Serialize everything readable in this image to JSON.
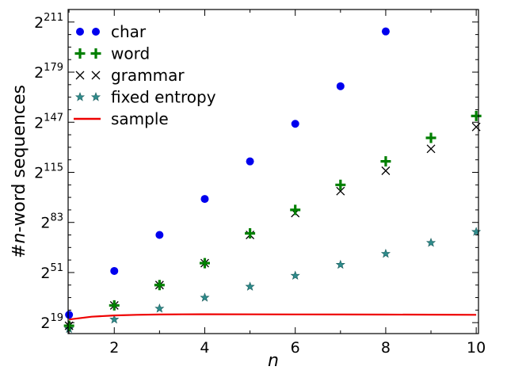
{
  "chart_data": {
    "type": "scatter",
    "xlabel": "n",
    "ylabel": "#n-word sequences",
    "xlim": [
      0.98,
      10.05
    ],
    "ylim": [
      12,
      219
    ],
    "y_scale": "log2",
    "x_ticks": [
      2,
      4,
      6,
      8,
      10
    ],
    "y_ticks": [
      {
        "base": "2",
        "exp": "19",
        "value": 19
      },
      {
        "base": "2",
        "exp": "51",
        "value": 51
      },
      {
        "base": "2",
        "exp": "83",
        "value": 83
      },
      {
        "base": "2",
        "exp": "115",
        "value": 115
      },
      {
        "base": "2",
        "exp": "147",
        "value": 147
      },
      {
        "base": "2",
        "exp": "179",
        "value": 179
      },
      {
        "base": "2",
        "exp": "211",
        "value": 211
      }
    ],
    "y_minor_ticks": [
      27,
      35,
      43,
      59,
      67,
      75,
      91,
      99,
      107,
      123,
      131,
      139,
      155,
      163,
      171,
      187,
      195,
      203
    ],
    "x_minor_ticks": [
      1,
      3,
      5,
      7,
      9
    ],
    "legend_position": "top-left",
    "grid": false,
    "series": [
      {
        "name": "char",
        "marker": "circle",
        "color": "#0000ee",
        "x": [
          1,
          2,
          3,
          4,
          5,
          6,
          7,
          8
        ],
        "y": [
          24,
          52,
          75,
          98,
          122,
          146,
          170,
          205
        ]
      },
      {
        "name": "word",
        "marker": "plus",
        "color": "#007f00",
        "x": [
          1,
          2,
          3,
          4,
          5,
          6,
          7,
          8,
          9,
          10
        ],
        "y": [
          17,
          30,
          43,
          57,
          76,
          91,
          107,
          122,
          137,
          151
        ]
      },
      {
        "name": "grammar",
        "marker": "x",
        "color": "#000000",
        "x": [
          1,
          2,
          3,
          4,
          5,
          6,
          7,
          8,
          9,
          10
        ],
        "y": [
          17,
          30,
          43,
          57,
          75,
          89,
          103,
          116,
          130,
          144
        ]
      },
      {
        "name": "fixed entropy",
        "marker": "star",
        "color": "#2e8b8b",
        "x": [
          1,
          2,
          3,
          4,
          5,
          6,
          7,
          8,
          9,
          10
        ],
        "y": [
          15,
          21,
          28,
          35,
          42,
          49,
          56,
          63,
          70,
          77
        ]
      },
      {
        "name": "sample",
        "marker": "line",
        "color": "#ee0000",
        "x": [
          1,
          1.5,
          2,
          2.5,
          3,
          3.5,
          4,
          5,
          6,
          7,
          8,
          9,
          10
        ],
        "y": [
          21,
          22.8,
          23.6,
          24.0,
          24.2,
          24.3,
          24.35,
          24.3,
          24.25,
          24.2,
          24.15,
          24.1,
          24.0
        ]
      }
    ]
  }
}
